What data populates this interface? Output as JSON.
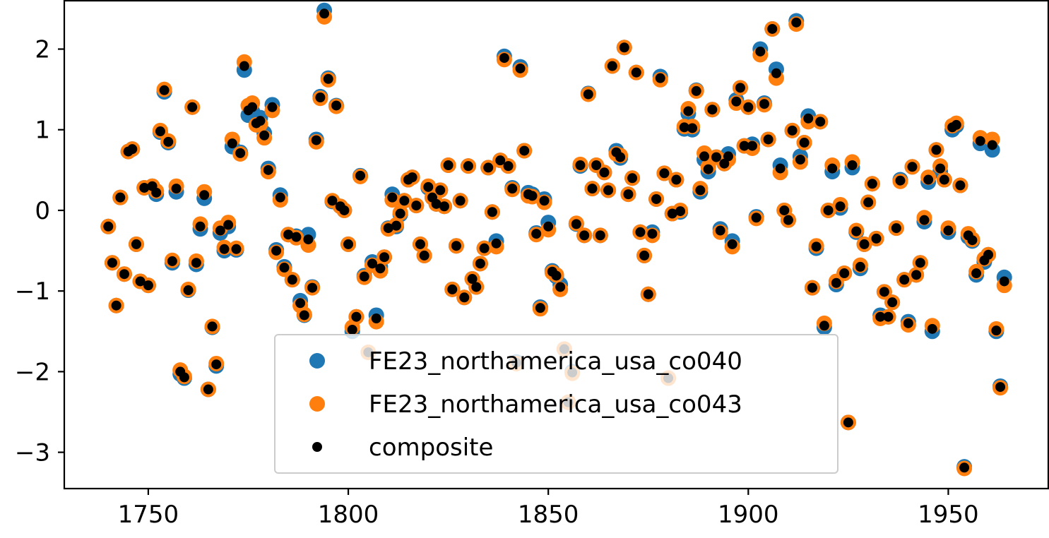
{
  "chart_data": {
    "type": "scatter",
    "title": "",
    "xlabel": "",
    "ylabel": "",
    "xlim": [
      1729,
      1975
    ],
    "ylim": [
      -3.45,
      2.6
    ],
    "x_ticks": [
      1750,
      1800,
      1850,
      1900,
      1950
    ],
    "x_tick_labels": [
      "1750",
      "1800",
      "1850",
      "1900",
      "1950"
    ],
    "y_ticks": [
      -3,
      -2,
      -1,
      0,
      1,
      2
    ],
    "y_tick_labels": [
      "−3",
      "−2",
      "−1",
      "0",
      "1",
      "2"
    ],
    "grid": false,
    "legend": {
      "placement": "lower-center"
    },
    "colors": {
      "s1": "#1f77b4",
      "s2": "#ff7f0e",
      "composite": "#000000"
    },
    "series": [
      {
        "name": "FE23_northamerica_usa_co040",
        "role": "s1",
        "marker_size": "large"
      },
      {
        "name": "FE23_northamerica_usa_co043",
        "role": "s2",
        "marker_size": "large"
      },
      {
        "name": "composite",
        "role": "composite",
        "marker_size": "small"
      }
    ],
    "points": [
      [
        1740,
        -0.2,
        -0.2,
        -0.2
      ],
      [
        1741,
        -0.65,
        -0.65,
        -0.65
      ],
      [
        1742,
        -1.18,
        -1.18,
        -1.18
      ],
      [
        1743,
        0.16,
        0.16,
        0.16
      ],
      [
        1744,
        -0.79,
        -0.79,
        -0.79
      ],
      [
        1745,
        0.73,
        0.73,
        0.73
      ],
      [
        1746,
        0.76,
        0.76,
        0.76
      ],
      [
        1747,
        -0.42,
        -0.42,
        -0.42
      ],
      [
        1748,
        -0.88,
        -0.88,
        -0.88
      ],
      [
        1749,
        0.28,
        0.28,
        0.28
      ],
      [
        1750,
        -0.93,
        -0.93,
        -0.93
      ],
      [
        1751,
        0.3,
        0.3,
        0.3
      ],
      [
        1752,
        0.2,
        0.24,
        0.22
      ],
      [
        1753,
        0.97,
        0.99,
        0.98
      ],
      [
        1754,
        1.47,
        1.5,
        1.49
      ],
      [
        1755,
        0.84,
        0.86,
        0.85
      ],
      [
        1756,
        -0.65,
        -0.62,
        -0.63
      ],
      [
        1757,
        0.23,
        0.3,
        0.27
      ],
      [
        1758,
        -2.03,
        -1.98,
        -2.0
      ],
      [
        1759,
        -2.08,
        -2.06,
        -2.07
      ],
      [
        1760,
        -0.99,
        -0.98,
        -0.99
      ],
      [
        1761,
        1.28,
        1.28,
        1.28
      ],
      [
        1762,
        -0.67,
        -0.63,
        -0.65
      ],
      [
        1763,
        -0.23,
        -0.17,
        -0.2
      ],
      [
        1764,
        0.15,
        0.23,
        0.19
      ],
      [
        1765,
        -2.22,
        -2.22,
        -2.22
      ],
      [
        1766,
        -1.45,
        -1.44,
        -1.44
      ],
      [
        1767,
        -1.93,
        -1.9,
        -1.91
      ],
      [
        1768,
        -0.28,
        -0.22,
        -0.25
      ],
      [
        1769,
        -0.5,
        -0.46,
        -0.48
      ],
      [
        1770,
        -0.2,
        -0.15,
        -0.18
      ],
      [
        1771,
        0.79,
        0.88,
        0.83
      ],
      [
        1772,
        -0.49,
        -0.47,
        -0.48
      ],
      [
        1773,
        0.72,
        0.7,
        0.71
      ],
      [
        1774,
        1.74,
        1.84,
        1.79
      ],
      [
        1775,
        1.18,
        1.3,
        1.24
      ],
      [
        1776,
        1.23,
        1.33,
        1.28
      ],
      [
        1777,
        1.1,
        1.06,
        1.08
      ],
      [
        1778,
        1.15,
        1.07,
        1.11
      ],
      [
        1779,
        0.96,
        0.9,
        0.93
      ],
      [
        1780,
        0.52,
        0.48,
        0.5
      ],
      [
        1781,
        1.31,
        1.24,
        1.28
      ],
      [
        1782,
        -0.49,
        -0.52,
        -0.5
      ],
      [
        1783,
        0.19,
        0.13,
        0.16
      ],
      [
        1784,
        -0.7,
        -0.73,
        -0.71
      ],
      [
        1785,
        -0.3,
        -0.3,
        -0.3
      ],
      [
        1786,
        -0.86,
        -0.86,
        -0.86
      ],
      [
        1787,
        -0.32,
        -0.34,
        -0.33
      ],
      [
        1788,
        -1.12,
        -1.18,
        -1.15
      ],
      [
        1789,
        -1.3,
        -1.29,
        -1.3
      ],
      [
        1790,
        -0.3,
        -0.43,
        -0.36
      ],
      [
        1791,
        -0.95,
        -0.96,
        -0.96
      ],
      [
        1792,
        0.88,
        0.85,
        0.87
      ],
      [
        1793,
        1.41,
        1.39,
        1.4
      ],
      [
        1794,
        2.48,
        2.4,
        2.44
      ],
      [
        1795,
        1.64,
        1.62,
        1.63
      ],
      [
        1796,
        0.11,
        0.12,
        0.12
      ],
      [
        1797,
        1.3,
        1.29,
        1.3
      ],
      [
        1798,
        0.05,
        0.05,
        0.05
      ],
      [
        1799,
        0.0,
        0.0,
        0.0
      ],
      [
        1800,
        -0.42,
        -0.42,
        -0.42
      ],
      [
        1801,
        -1.5,
        -1.45,
        -1.48
      ],
      [
        1802,
        -1.32,
        -1.32,
        -1.32
      ],
      [
        1803,
        0.43,
        0.42,
        0.43
      ],
      [
        1804,
        -0.81,
        -0.83,
        -0.82
      ],
      [
        1805,
        -1.76,
        -1.76,
        -1.76
      ],
      [
        1806,
        -0.64,
        -0.68,
        -0.66
      ],
      [
        1807,
        -1.3,
        -1.38,
        -1.34
      ],
      [
        1808,
        -0.7,
        -0.75,
        -0.72
      ],
      [
        1809,
        -0.58,
        -0.58,
        -0.58
      ],
      [
        1810,
        -0.22,
        -0.23,
        -0.22
      ],
      [
        1811,
        0.2,
        0.13,
        0.16
      ],
      [
        1812,
        -0.2,
        -0.18,
        -0.19
      ],
      [
        1813,
        -0.05,
        -0.03,
        -0.04
      ],
      [
        1814,
        0.12,
        0.12,
        0.12
      ],
      [
        1815,
        0.38,
        0.38,
        0.38
      ],
      [
        1816,
        0.41,
        0.41,
        0.41
      ],
      [
        1817,
        0.06,
        0.06,
        0.06
      ],
      [
        1818,
        -0.42,
        -0.42,
        -0.42
      ],
      [
        1819,
        -0.56,
        -0.56,
        -0.56
      ],
      [
        1820,
        0.28,
        0.3,
        0.29
      ],
      [
        1821,
        0.16,
        0.16,
        0.16
      ],
      [
        1822,
        0.08,
        0.08,
        0.08
      ],
      [
        1823,
        0.25,
        0.25,
        0.25
      ],
      [
        1824,
        0.05,
        0.05,
        0.05
      ],
      [
        1825,
        0.56,
        0.56,
        0.56
      ],
      [
        1826,
        -0.98,
        -0.98,
        -0.98
      ],
      [
        1827,
        -0.44,
        -0.44,
        -0.44
      ],
      [
        1828,
        0.12,
        0.12,
        0.12
      ],
      [
        1829,
        -1.08,
        -1.08,
        -1.08
      ],
      [
        1830,
        0.55,
        0.55,
        0.55
      ],
      [
        1831,
        -0.85,
        -0.85,
        -0.85
      ],
      [
        1832,
        -0.95,
        -0.95,
        -0.95
      ],
      [
        1833,
        -0.66,
        -0.66,
        -0.66
      ],
      [
        1834,
        -0.47,
        -0.47,
        -0.47
      ],
      [
        1835,
        0.53,
        0.53,
        0.53
      ],
      [
        1836,
        -0.02,
        -0.02,
        -0.02
      ],
      [
        1837,
        -0.38,
        -0.45,
        -0.41
      ],
      [
        1838,
        0.62,
        0.62,
        0.62
      ],
      [
        1839,
        1.91,
        1.87,
        1.89
      ],
      [
        1840,
        0.55,
        0.55,
        0.55
      ],
      [
        1841,
        0.28,
        0.26,
        0.27
      ],
      [
        1842,
        -1.88,
        -1.9,
        -1.89
      ],
      [
        1843,
        1.78,
        1.74,
        1.76
      ],
      [
        1844,
        0.74,
        0.74,
        0.74
      ],
      [
        1845,
        0.22,
        0.18,
        0.2
      ],
      [
        1846,
        0.2,
        0.17,
        0.18
      ],
      [
        1847,
        -0.28,
        -0.3,
        -0.29
      ],
      [
        1848,
        -1.2,
        -1.22,
        -1.21
      ],
      [
        1849,
        0.14,
        0.1,
        0.12
      ],
      [
        1850,
        -0.15,
        -0.24,
        -0.2
      ],
      [
        1851,
        -0.75,
        -0.77,
        -0.76
      ],
      [
        1852,
        -0.82,
        -0.8,
        -0.81
      ],
      [
        1853,
        -0.92,
        -0.98,
        -0.95
      ],
      [
        1854,
        -1.72,
        -1.72,
        -1.72
      ],
      [
        1855,
        -2.38,
        -2.38,
        -2.38
      ],
      [
        1856,
        -2.0,
        -2.02,
        -2.01
      ],
      [
        1857,
        -0.17,
        -0.16,
        -0.17
      ],
      [
        1858,
        0.55,
        0.57,
        0.56
      ],
      [
        1859,
        -0.31,
        -0.31,
        -0.31
      ],
      [
        1860,
        1.45,
        1.44,
        1.44
      ],
      [
        1861,
        0.27,
        0.27,
        0.27
      ],
      [
        1862,
        0.56,
        0.56,
        0.56
      ],
      [
        1863,
        -0.31,
        -0.31,
        -0.31
      ],
      [
        1864,
        0.47,
        0.47,
        0.47
      ],
      [
        1865,
        0.25,
        0.25,
        0.25
      ],
      [
        1866,
        1.79,
        1.79,
        1.79
      ],
      [
        1867,
        0.74,
        0.7,
        0.72
      ],
      [
        1868,
        0.65,
        0.68,
        0.66
      ],
      [
        1869,
        2.02,
        2.02,
        2.02
      ],
      [
        1870,
        0.2,
        0.2,
        0.2
      ],
      [
        1871,
        0.4,
        0.4,
        0.4
      ],
      [
        1872,
        1.71,
        1.71,
        1.71
      ],
      [
        1873,
        -0.27,
        -0.27,
        -0.27
      ],
      [
        1874,
        -0.56,
        -0.56,
        -0.56
      ],
      [
        1875,
        -1.04,
        -1.04,
        -1.04
      ],
      [
        1876,
        -0.27,
        -0.31,
        -0.29
      ],
      [
        1877,
        0.14,
        0.14,
        0.14
      ],
      [
        1878,
        1.66,
        1.62,
        1.64
      ],
      [
        1879,
        0.46,
        0.46,
        0.46
      ],
      [
        1880,
        -2.08,
        -2.08,
        -2.08
      ],
      [
        1881,
        -0.04,
        -0.04,
        -0.04
      ],
      [
        1882,
        0.38,
        0.38,
        0.38
      ],
      [
        1883,
        -0.02,
        0.0,
        -0.01
      ],
      [
        1884,
        1.01,
        1.04,
        1.03
      ],
      [
        1885,
        1.2,
        1.26,
        1.23
      ],
      [
        1886,
        1.0,
        1.04,
        1.02
      ],
      [
        1887,
        1.49,
        1.48,
        1.48
      ],
      [
        1888,
        0.23,
        0.27,
        0.25
      ],
      [
        1889,
        0.63,
        0.71,
        0.67
      ],
      [
        1890,
        0.48,
        0.54,
        0.51
      ],
      [
        1891,
        1.25,
        1.25,
        1.25
      ],
      [
        1892,
        0.66,
        0.66,
        0.66
      ],
      [
        1893,
        -0.23,
        -0.27,
        -0.25
      ],
      [
        1894,
        0.58,
        0.58,
        0.58
      ],
      [
        1895,
        0.7,
        0.63,
        0.67
      ],
      [
        1896,
        -0.38,
        -0.45,
        -0.42
      ],
      [
        1897,
        1.37,
        1.33,
        1.35
      ],
      [
        1898,
        1.52,
        1.52,
        1.52
      ],
      [
        1899,
        0.8,
        0.8,
        0.8
      ],
      [
        1900,
        1.28,
        1.28,
        1.28
      ],
      [
        1901,
        0.82,
        0.77,
        0.8
      ],
      [
        1902,
        -0.08,
        -0.1,
        -0.09
      ],
      [
        1903,
        2.0,
        1.93,
        1.97
      ],
      [
        1904,
        1.33,
        1.31,
        1.32
      ],
      [
        1905,
        0.88,
        0.88,
        0.88
      ],
      [
        1906,
        2.25,
        2.25,
        2.25
      ],
      [
        1907,
        1.75,
        1.64,
        1.7
      ],
      [
        1908,
        0.56,
        0.47,
        0.52
      ],
      [
        1909,
        0.0,
        0.0,
        0.0
      ],
      [
        1910,
        -0.12,
        -0.12,
        -0.12
      ],
      [
        1911,
        0.99,
        0.99,
        0.99
      ],
      [
        1912,
        2.35,
        2.31,
        2.33
      ],
      [
        1913,
        0.67,
        0.6,
        0.63
      ],
      [
        1914,
        0.84,
        0.84,
        0.84
      ],
      [
        1915,
        1.17,
        1.1,
        1.14
      ],
      [
        1916,
        -0.96,
        -0.96,
        -0.96
      ],
      [
        1917,
        -0.47,
        -0.44,
        -0.45
      ],
      [
        1918,
        1.1,
        1.1,
        1.1
      ],
      [
        1919,
        -1.45,
        -1.4,
        -1.43
      ],
      [
        1920,
        0.0,
        0.0,
        0.0
      ],
      [
        1921,
        0.48,
        0.56,
        0.52
      ],
      [
        1922,
        -0.92,
        -0.88,
        -0.9
      ],
      [
        1923,
        0.03,
        0.07,
        0.05
      ],
      [
        1924,
        -0.78,
        -0.78,
        -0.78
      ],
      [
        1925,
        -2.63,
        -2.63,
        -2.63
      ],
      [
        1926,
        0.53,
        0.6,
        0.56
      ],
      [
        1927,
        -0.27,
        -0.25,
        -0.26
      ],
      [
        1928,
        -0.72,
        -0.68,
        -0.7
      ],
      [
        1929,
        -0.42,
        -0.42,
        -0.42
      ],
      [
        1930,
        0.1,
        0.1,
        0.1
      ],
      [
        1931,
        0.33,
        0.33,
        0.33
      ],
      [
        1932,
        -0.35,
        -0.35,
        -0.35
      ],
      [
        1933,
        -1.3,
        -1.34,
        -1.32
      ],
      [
        1934,
        -1.01,
        -1.01,
        -1.01
      ],
      [
        1935,
        -1.32,
        -1.32,
        -1.32
      ],
      [
        1936,
        -1.14,
        -1.14,
        -1.14
      ],
      [
        1937,
        -0.22,
        -0.22,
        -0.22
      ],
      [
        1938,
        0.38,
        0.36,
        0.37
      ],
      [
        1939,
        -0.86,
        -0.86,
        -0.86
      ],
      [
        1940,
        -1.38,
        -1.42,
        -1.4
      ],
      [
        1941,
        0.54,
        0.54,
        0.54
      ],
      [
        1942,
        -0.8,
        -0.8,
        -0.8
      ],
      [
        1943,
        -0.65,
        -0.65,
        -0.65
      ],
      [
        1944,
        -0.14,
        -0.09,
        -0.12
      ],
      [
        1945,
        0.35,
        0.41,
        0.38
      ],
      [
        1946,
        -1.5,
        -1.43,
        -1.47
      ],
      [
        1947,
        0.75,
        0.75,
        0.75
      ],
      [
        1948,
        0.48,
        0.55,
        0.52
      ],
      [
        1949,
        0.38,
        0.38,
        0.38
      ],
      [
        1950,
        -0.27,
        -0.22,
        -0.25
      ],
      [
        1951,
        1.0,
        1.05,
        1.03
      ],
      [
        1952,
        1.05,
        1.08,
        1.06
      ],
      [
        1953,
        0.31,
        0.31,
        0.31
      ],
      [
        1954,
        -3.18,
        -3.2,
        -3.19
      ],
      [
        1955,
        -0.33,
        -0.29,
        -0.31
      ],
      [
        1956,
        -0.38,
        -0.36,
        -0.37
      ],
      [
        1957,
        -0.8,
        -0.76,
        -0.78
      ],
      [
        1958,
        0.83,
        0.9,
        0.86
      ],
      [
        1959,
        -0.64,
        -0.6,
        -0.62
      ],
      [
        1960,
        -0.55,
        -0.55,
        -0.55
      ],
      [
        1961,
        0.75,
        0.88,
        0.81
      ],
      [
        1962,
        -1.5,
        -1.47,
        -1.49
      ],
      [
        1963,
        -2.18,
        -2.2,
        -2.19
      ],
      [
        1964,
        -0.83,
        -0.93,
        -0.88
      ]
    ]
  }
}
